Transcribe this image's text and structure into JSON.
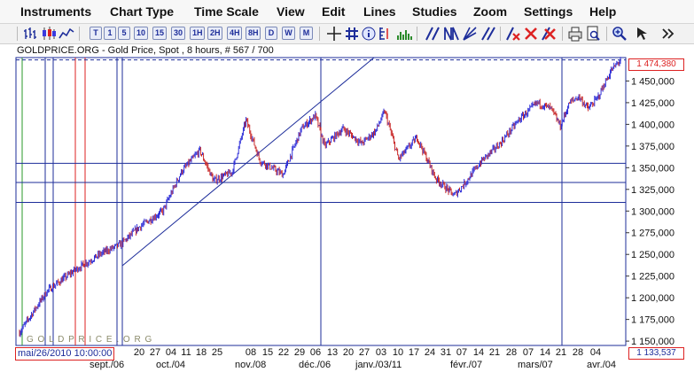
{
  "menu": {
    "instruments": "Instruments",
    "chart_type": "Chart Type",
    "time_scale": "Time Scale",
    "view": "View",
    "edit": "Edit",
    "lines": "Lines",
    "studies": "Studies",
    "zoom": "Zoom",
    "settings": "Settings",
    "help": "Help"
  },
  "toolbar": {
    "period_buttons": [
      "T",
      "1",
      "5",
      "10",
      "15",
      "30",
      "1H",
      "2H",
      "4H",
      "8H",
      "D",
      "W",
      "M"
    ],
    "accent_color": "#1d2d9a",
    "icons": [
      "bar-chart-icon",
      "candlestick-icon",
      "line-chart-icon",
      "crosshair-icon",
      "grid-icon",
      "info-icon",
      "list-icon",
      "volume-icon",
      "draw-line-icon",
      "draw-lines-icon",
      "draw-fan-icon",
      "draw-parallel-icon",
      "delete-line-icon",
      "delete-icon",
      "delete-all-icon",
      "print-icon",
      "print-preview-icon",
      "zoom-in-icon",
      "cursor-icon",
      "more-icon"
    ]
  },
  "chart_title": "GOLDPRICE.ORG - Gold Price, Spot , 8 hours, # 567 / 700",
  "watermark": "G O L D P R I C E . O R G",
  "current_price": "1 474,380",
  "low_price": "1 133,537",
  "current_date": "mai/26/2010 10:00:00",
  "chart_data": {
    "type": "candlestick",
    "y_tick_labels": [
      "1 150,000",
      "1 175,000",
      "1 200,000",
      "1 225,000",
      "1 250,000",
      "1 275,000",
      "1 300,000",
      "1 325,000",
      "1 350,000",
      "1 375,000",
      "1 400,000",
      "1 425,000",
      "1 450,000"
    ],
    "y_ticks": [
      1150000,
      1175000,
      1200000,
      1225000,
      1250000,
      1275000,
      1300000,
      1325000,
      1350000,
      1375000,
      1400000,
      1425000,
      1450000
    ],
    "ylim": [
      1145000,
      1477000
    ],
    "current_value": 1474380,
    "x_day_labels": [
      "20",
      "27",
      "04",
      "11",
      "18",
      "25",
      "08",
      "15",
      "22",
      "29",
      "06",
      "13",
      "20",
      "27",
      "03",
      "10",
      "17",
      "24",
      "31",
      "07",
      "14",
      "21",
      "28",
      "07",
      "14",
      "21",
      "28",
      "04"
    ],
    "x_month_labels": [
      "sept./06",
      "oct./04",
      "nov./08",
      "déc./06",
      "janv./03/11",
      "févr./07",
      "mars/07",
      "avr./04"
    ],
    "horizontal_levels": [
      1355000,
      1333000,
      1310000
    ],
    "close_anchors": [
      [
        0,
        1160000
      ],
      [
        30,
        1208000
      ],
      [
        60,
        1232000
      ],
      [
        90,
        1252000
      ],
      [
        110,
        1262000
      ],
      [
        130,
        1282000
      ],
      [
        155,
        1300000
      ],
      [
        175,
        1345000
      ],
      [
        195,
        1370000
      ],
      [
        210,
        1335000
      ],
      [
        230,
        1345000
      ],
      [
        245,
        1405000
      ],
      [
        260,
        1358000
      ],
      [
        285,
        1342000
      ],
      [
        305,
        1395000
      ],
      [
        320,
        1410000
      ],
      [
        330,
        1375000
      ],
      [
        350,
        1395000
      ],
      [
        370,
        1378000
      ],
      [
        385,
        1392000
      ],
      [
        395,
        1415000
      ],
      [
        410,
        1360000
      ],
      [
        430,
        1385000
      ],
      [
        450,
        1338000
      ],
      [
        470,
        1318000
      ],
      [
        480,
        1330000
      ],
      [
        500,
        1358000
      ],
      [
        520,
        1378000
      ],
      [
        540,
        1405000
      ],
      [
        560,
        1425000
      ],
      [
        575,
        1418000
      ],
      [
        585,
        1398000
      ],
      [
        595,
        1425000
      ],
      [
        605,
        1432000
      ],
      [
        615,
        1418000
      ],
      [
        625,
        1430000
      ],
      [
        640,
        1462000
      ],
      [
        650,
        1474380
      ]
    ]
  }
}
